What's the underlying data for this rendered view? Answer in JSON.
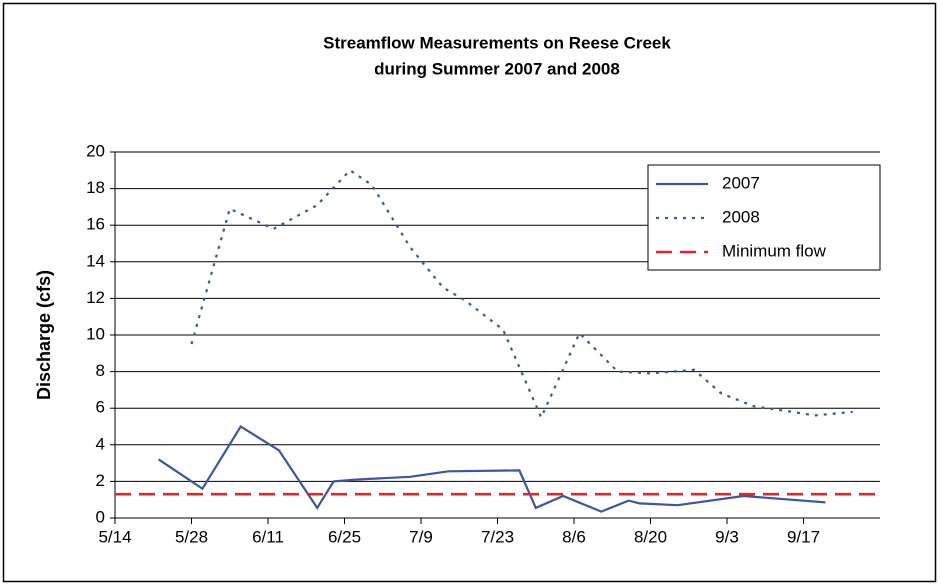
{
  "chart_data": {
    "type": "line",
    "title": [
      "Streamflow Measurements on Reese Creek",
      "during Summer 2007 and 2008"
    ],
    "y_label": "Discharge (cfs)",
    "xlim": [
      "5/14",
      "10/1"
    ],
    "xticks": [
      "5/14",
      "5/28",
      "6/11",
      "6/25",
      "7/9",
      "7/23",
      "8/6",
      "8/20",
      "9/3",
      "9/17"
    ],
    "ylim": [
      0,
      20
    ],
    "yticks": [
      0,
      2,
      4,
      6,
      8,
      10,
      12,
      14,
      16,
      18,
      20
    ],
    "grid": true,
    "legend": "top-right",
    "series": [
      {
        "name": "2007",
        "color": "#3a56a5",
        "style": "solid",
        "x": [
          "5/22",
          "5/30",
          "6/6",
          "6/13",
          "6/20",
          "6/23",
          "6/27",
          "7/7",
          "7/14",
          "7/27",
          "7/30",
          "8/4",
          "8/11",
          "8/16",
          "8/18",
          "8/25",
          "9/6",
          "9/21"
        ],
        "values": [
          3.2,
          1.6,
          5.0,
          3.7,
          0.55,
          2.0,
          2.1,
          2.25,
          2.55,
          2.6,
          0.55,
          1.2,
          0.35,
          0.95,
          0.8,
          0.7,
          1.2,
          0.85
        ]
      },
      {
        "name": "2008",
        "color": "#3a56a5",
        "style": "dotted",
        "x": [
          "5/28",
          "6/4",
          "6/12",
          "6/20",
          "6/26",
          "6/30",
          "7/7",
          "7/13",
          "7/17",
          "7/24",
          "7/31",
          "8/7",
          "8/14",
          "8/20",
          "8/28",
          "9/2",
          "9/8",
          "9/15",
          "9/19",
          "9/26"
        ],
        "values": [
          9.5,
          16.9,
          15.8,
          17.1,
          19.0,
          18.2,
          14.8,
          12.6,
          11.9,
          10.3,
          5.5,
          10.1,
          8.0,
          7.9,
          8.1,
          6.8,
          6.1,
          5.8,
          5.6,
          5.8
        ]
      },
      {
        "name": "Minimum flow",
        "color": "#e3262b",
        "style": "dashed",
        "x": [
          "5/14",
          "10/1"
        ],
        "values": [
          1.3,
          1.3
        ]
      }
    ]
  }
}
